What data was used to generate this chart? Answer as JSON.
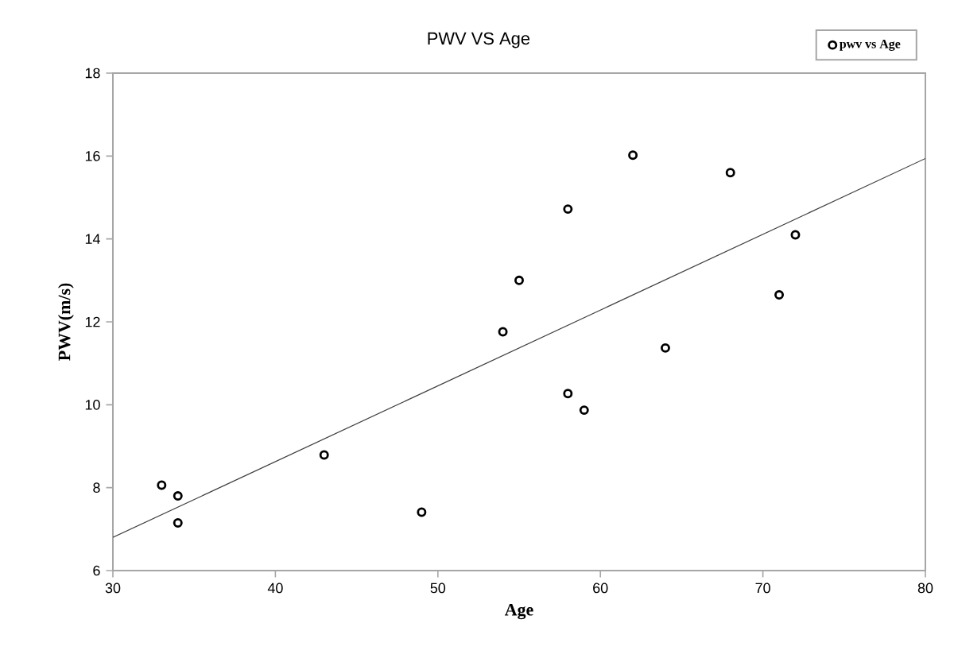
{
  "chart_data": {
    "type": "scatter",
    "title": "PWV  VS  Age",
    "xlabel": "Age",
    "ylabel": "PWV(m/s)",
    "xlim": [
      30,
      80
    ],
    "xticks": [
      30,
      40,
      50,
      60,
      70,
      80
    ],
    "ylim": [
      6,
      18
    ],
    "yticks": [
      6,
      8,
      10,
      12,
      14,
      16,
      18
    ],
    "grid": false,
    "legend": "top right",
    "series": [
      {
        "name": "pwv vs Age",
        "marker": "circle",
        "color": "#000000",
        "x": [
          33,
          34,
          34,
          43,
          49,
          54,
          55,
          58,
          58,
          59,
          62,
          64,
          68,
          71,
          72
        ],
        "values": [
          8.06,
          7.8,
          7.15,
          8.79,
          7.41,
          11.76,
          13.0,
          14.72,
          10.27,
          9.87,
          16.02,
          11.37,
          15.6,
          12.65,
          14.1
        ]
      },
      {
        "type": "line",
        "marker": "none",
        "color": "#404040",
        "x": [
          30,
          80
        ],
        "values": [
          6.8,
          15.94
        ]
      }
    ]
  }
}
